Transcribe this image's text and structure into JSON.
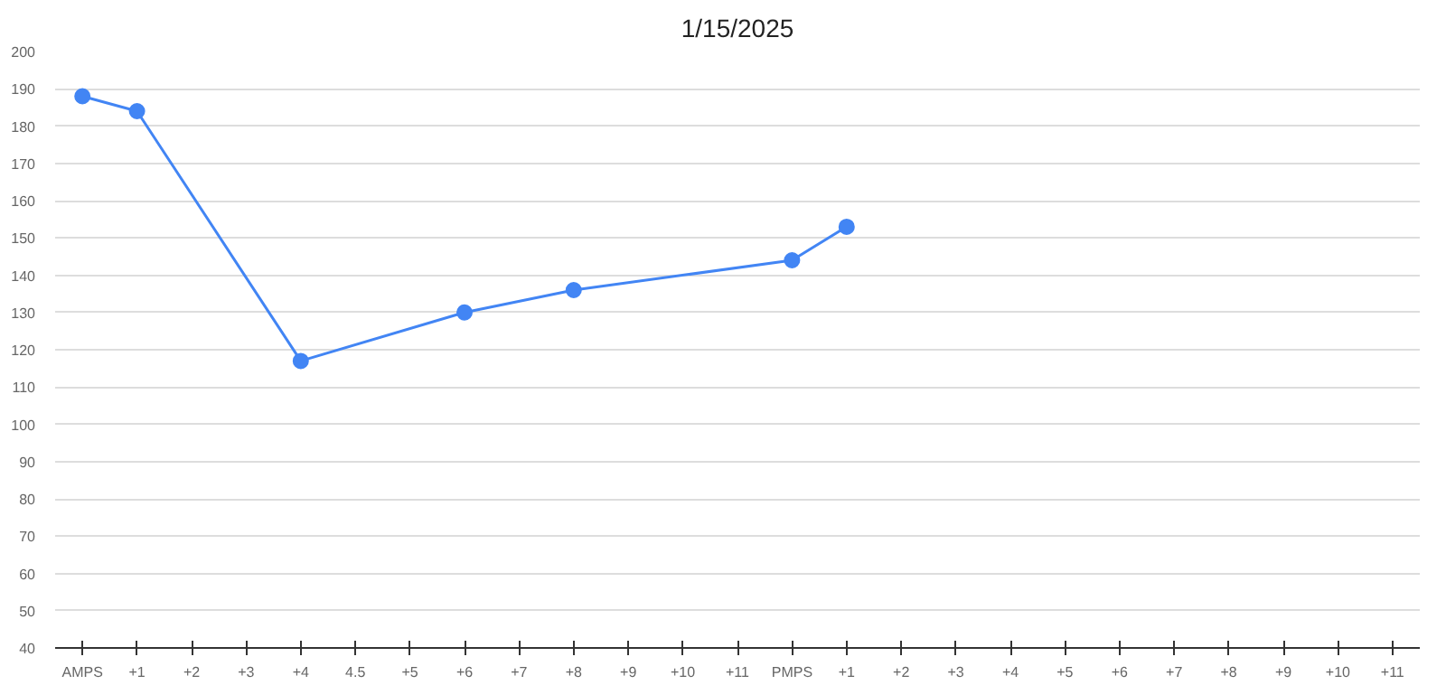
{
  "chart_data": {
    "type": "line",
    "title": "1/15/2025",
    "categories": [
      "AMPS",
      "+1",
      "+2",
      "+3",
      "+4",
      "4.5",
      "+5",
      "+6",
      "+7",
      "+8",
      "+9",
      "+10",
      "+11",
      "PMPS",
      "+1",
      "+2",
      "+3",
      "+4",
      "+5",
      "+6",
      "+7",
      "+8",
      "+9",
      "+10",
      "+11"
    ],
    "series": [
      {
        "color": "#4285f4",
        "values": [
          188,
          184,
          null,
          null,
          117,
          null,
          null,
          130,
          null,
          136,
          null,
          null,
          null,
          144,
          153,
          null,
          null,
          null,
          null,
          null,
          null,
          null,
          null,
          null,
          null
        ]
      }
    ],
    "ylim": [
      40,
      200
    ],
    "yticks": [
      40,
      50,
      60,
      70,
      80,
      90,
      100,
      110,
      120,
      130,
      140,
      150,
      160,
      170,
      180,
      190,
      200
    ],
    "grid": "y",
    "marker": "circle",
    "line_style": "solid"
  }
}
